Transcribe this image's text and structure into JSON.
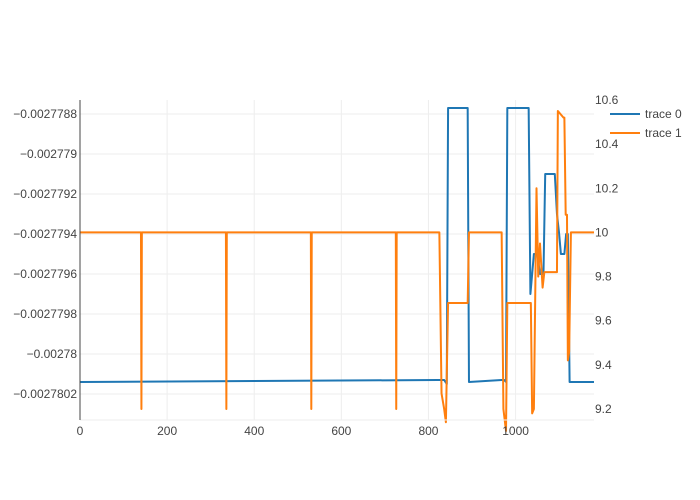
{
  "chart_data": {
    "type": "line",
    "title": "",
    "xlabel": "",
    "ylabel": "",
    "y2label": "",
    "grid": true,
    "legend_position": "top-right",
    "xlim": [
      0,
      1180
    ],
    "ylim": [
      -0.00278033,
      -0.00277873
    ],
    "y2lim": [
      9.15,
      10.6
    ],
    "x_ticks": [
      0,
      200,
      400,
      600,
      800,
      1000
    ],
    "x_tick_labels": [
      "0",
      "200",
      "400",
      "600",
      "800",
      "1000"
    ],
    "y_ticks": [
      -0.0027788,
      -0.002779,
      -0.0027792,
      -0.0027794,
      -0.0027796,
      -0.0027798,
      -0.00278,
      -0.0027802
    ],
    "y_tick_labels": [
      "−0.0027788",
      "−0.002779",
      "−0.0027792",
      "−0.0027794",
      "−0.0027796",
      "−0.0027798",
      "−0.00278",
      "−0.0027802"
    ],
    "y2_ticks": [
      9.2,
      9.4,
      9.6,
      9.8,
      10,
      10.2,
      10.4,
      10.6
    ],
    "y2_tick_labels": [
      "9.2",
      "9.4",
      "9.6",
      "9.8",
      "10",
      "10.2",
      "10.4",
      "10.6"
    ],
    "series": [
      {
        "name": "trace 0",
        "color": "#1f77b4",
        "axis": "y",
        "x": [
          0,
          820,
          836,
          842,
          845,
          890,
          893,
          968,
          974,
          978,
          981,
          1030,
          1034,
          1038,
          1042,
          1050,
          1056,
          1060,
          1064,
          1068,
          1090,
          1095,
          1100,
          1104,
          1108,
          1112,
          1116,
          1120,
          1124,
          1128,
          1132,
          1180
        ],
        "y": [
          -0.00278014,
          -0.00278013,
          -0.00278013,
          -0.00278015,
          -0.00277877,
          -0.00277877,
          -0.00278014,
          -0.00278013,
          -0.00278013,
          -0.00278014,
          -0.00277877,
          -0.00277877,
          -0.0027797,
          -0.0027796,
          -0.0027795,
          -0.0027795,
          -0.0027796,
          -0.0027796,
          -0.0027796,
          -0.0027791,
          -0.0027791,
          -0.0027793,
          -0.0027794,
          -0.0027795,
          -0.0027795,
          -0.0027795,
          -0.0027794,
          -0.0027794,
          -0.00278014,
          -0.00278014,
          -0.00278014,
          -0.00278014
        ]
      },
      {
        "name": "trace 1",
        "color": "#ff7f0e",
        "axis": "y2",
        "x": [
          0,
          140,
          141,
          142,
          143,
          335,
          336,
          337,
          338,
          530,
          531,
          532,
          533,
          725,
          726,
          727,
          728,
          825,
          830,
          836,
          840,
          845,
          890,
          893,
          968,
          972,
          978,
          981,
          1035,
          1038,
          1042,
          1048,
          1052,
          1056,
          1062,
          1066,
          1070,
          1095,
          1097,
          1110,
          1112,
          1115,
          1118,
          1120,
          1123,
          1127,
          1135,
          1180
        ],
        "y": [
          10,
          10,
          9.2,
          10,
          10,
          10,
          9.2,
          10,
          10,
          10,
          9.2,
          10,
          10,
          10,
          9.2,
          10,
          10,
          10,
          9.27,
          9.2,
          9.14,
          9.68,
          9.68,
          10,
          10,
          9.2,
          9.1,
          9.68,
          9.68,
          9.18,
          9.2,
          10.2,
          9.8,
          9.95,
          9.75,
          9.82,
          9.82,
          9.82,
          10.55,
          10.52,
          10.52,
          10.08,
          10.08,
          9.42,
          9.46,
          10,
          10,
          10
        ]
      }
    ]
  }
}
